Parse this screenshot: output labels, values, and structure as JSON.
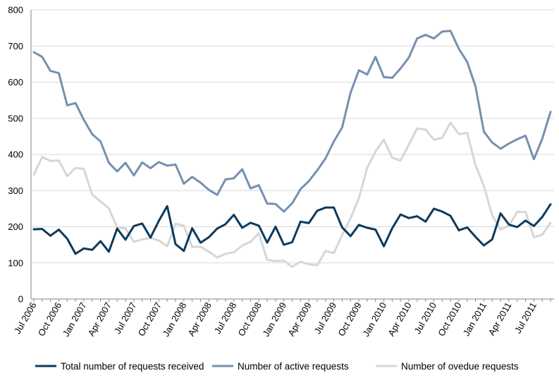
{
  "chart_data": {
    "type": "line",
    "title": "",
    "xlabel": "",
    "ylabel": "",
    "ylim": [
      0,
      800
    ],
    "yticks": [
      0,
      100,
      200,
      300,
      400,
      500,
      600,
      700,
      800
    ],
    "grid": true,
    "legend_position": "bottom",
    "x": [
      "Jul 2006",
      "Aug 2006",
      "Sep 2006",
      "Oct 2006",
      "Nov 2006",
      "Dec 2006",
      "Jan 2007",
      "Feb 2007",
      "Mar 2007",
      "Apr 2007",
      "May 2007",
      "Jun 2007",
      "Jul 2007",
      "Aug 2007",
      "Sep 2007",
      "Oct 2007",
      "Nov 2007",
      "Dec 2007",
      "Jan 2008",
      "Feb 2008",
      "Mar 2008",
      "Apr 2008",
      "May 2008",
      "Jun 2008",
      "Jul 2008",
      "Aug 2008",
      "Sep 2008",
      "Oct 2008",
      "Nov 2008",
      "Dec 2008",
      "Jan 2009",
      "Feb 2009",
      "Mar 2009",
      "Apr 2009",
      "May 2009",
      "Jun 2009",
      "Jul 2009",
      "Aug 2009",
      "Sep 2009",
      "Oct 2009",
      "Nov 2009",
      "Dec 2009",
      "Jan 2010",
      "Feb 2010",
      "Mar 2010",
      "Apr 2010",
      "May 2010",
      "Jun 2010",
      "Jul 2010",
      "Aug 2010",
      "Sep 2010",
      "Oct 2010",
      "Nov 2010",
      "Dec 2010",
      "Jan 2011",
      "Feb 2011",
      "Mar 2011",
      "Apr 2011",
      "May 2011",
      "Jun 2011",
      "Jul 2011",
      "Aug 2011",
      "Sep 2011"
    ],
    "xtick_labels": [
      "Jul 2006",
      "Oct 2006",
      "Jan 2007",
      "Apr 2007",
      "Jul 2007",
      "Oct 2007",
      "Jan 2008",
      "Apr 2008",
      "Jul 2008",
      "Oct 2008",
      "Jan 2009",
      "Apr 2009",
      "Jul 2009",
      "Oct 2009",
      "Jan 2010",
      "Apr 2010",
      "Jul 2010",
      "Oct 2010",
      "Jan 2011",
      "Apr 2011",
      "Jul 2011"
    ],
    "series": [
      {
        "name": "Total number of requests received",
        "color": "#0d3a5c",
        "values": [
          193,
          194,
          175,
          192,
          167,
          125,
          140,
          136,
          160,
          131,
          195,
          164,
          202,
          209,
          170,
          216,
          257,
          152,
          133,
          196,
          156,
          171,
          195,
          207,
          233,
          197,
          211,
          203,
          156,
          200,
          150,
          157,
          214,
          210,
          244,
          253,
          253,
          198,
          174,
          205,
          197,
          192,
          146,
          196,
          234,
          224,
          229,
          214,
          250,
          242,
          230,
          190,
          198,
          172,
          148,
          165,
          237,
          206,
          199,
          217,
          202,
          227,
          262
        ]
      },
      {
        "name": "Number of active requests",
        "color": "#7590ae",
        "values": [
          683,
          670,
          631,
          625,
          536,
          542,
          496,
          456,
          436,
          377,
          353,
          377,
          342,
          378,
          362,
          379,
          369,
          372,
          319,
          338,
          322,
          302,
          288,
          331,
          334,
          359,
          306,
          315,
          264,
          263,
          242,
          265,
          304,
          326,
          356,
          389,
          436,
          475,
          571,
          633,
          621,
          670,
          614,
          612,
          638,
          668,
          721,
          731,
          721,
          740,
          742,
          692,
          656,
          588,
          463,
          433,
          416,
          430,
          442,
          452,
          387,
          443,
          518
        ]
      },
      {
        "name": "Number of ovedue requests",
        "color": "#d6d6d6",
        "values": [
          344,
          393,
          382,
          383,
          340,
          363,
          360,
          289,
          270,
          251,
          198,
          195,
          158,
          165,
          169,
          162,
          146,
          208,
          203,
          144,
          145,
          131,
          115,
          125,
          129,
          148,
          158,
          182,
          108,
          105,
          106,
          89,
          103,
          96,
          93,
          133,
          127,
          177,
          223,
          279,
          363,
          408,
          441,
          391,
          383,
          427,
          472,
          469,
          441,
          446,
          488,
          456,
          460,
          370,
          313,
          232,
          192,
          203,
          241,
          241,
          171,
          178,
          211
        ]
      }
    ]
  }
}
